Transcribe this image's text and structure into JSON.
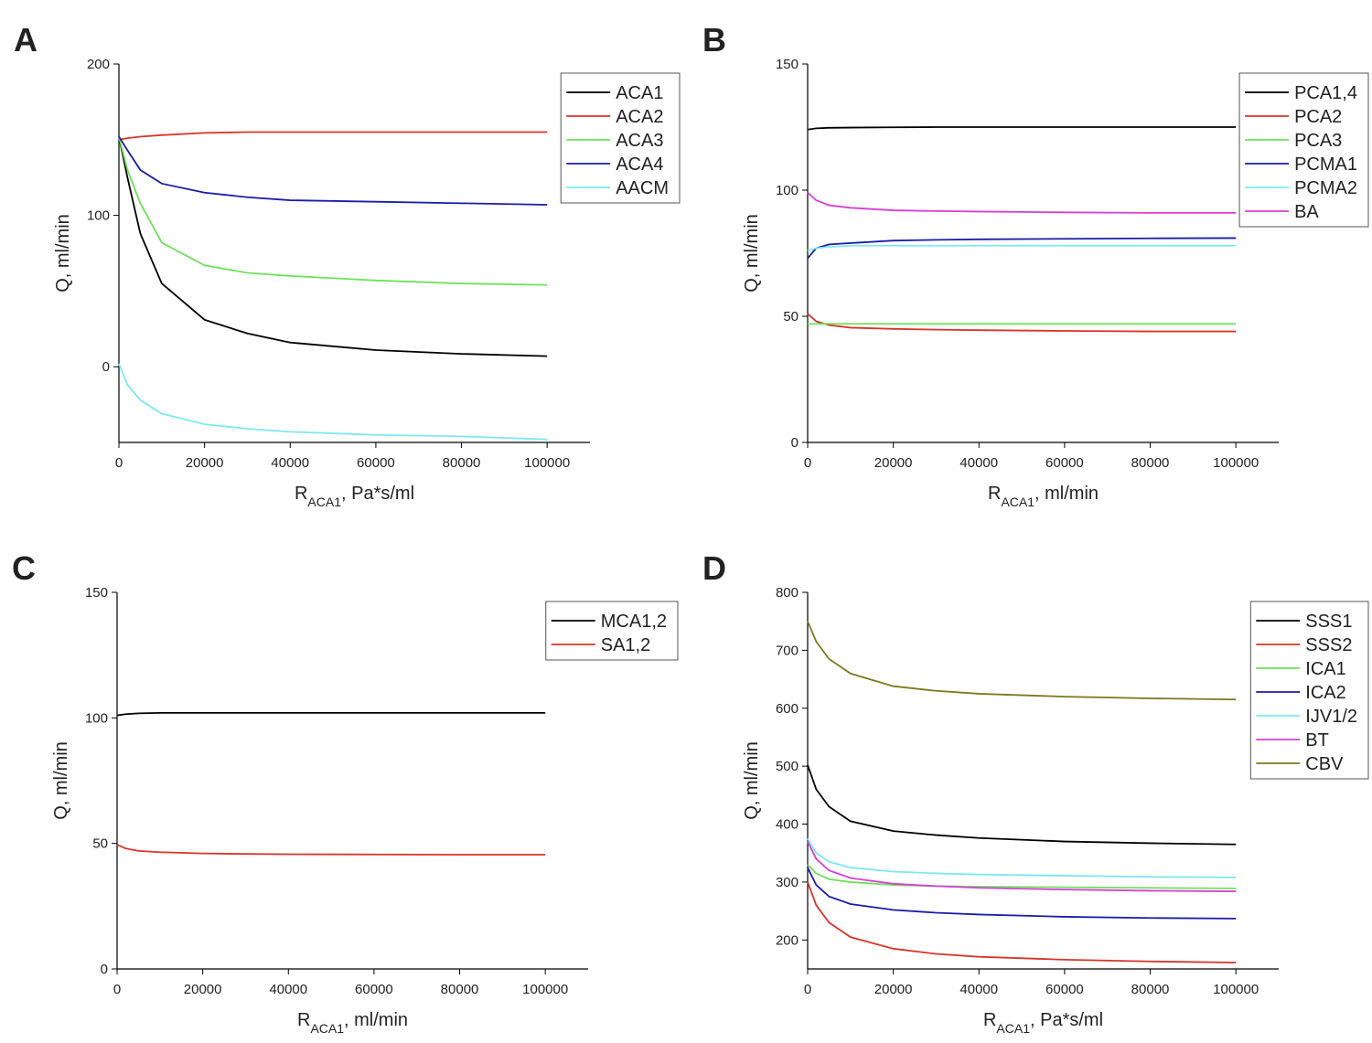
{
  "chart_data": [
    {
      "type": "line",
      "panel": "A",
      "xlabel": [
        "R",
        "ACA1",
        ", Pa*s/ml"
      ],
      "ylabel": "Q, ml/min",
      "x": [
        0,
        2000,
        5000,
        10000,
        20000,
        30000,
        40000,
        60000,
        80000,
        100000
      ],
      "xlim": [
        0,
        110000
      ],
      "xticks": [
        0,
        20000,
        40000,
        60000,
        80000,
        100000
      ],
      "ylim": [
        -50,
        200
      ],
      "yticks": [
        0,
        100,
        200
      ],
      "legend": "upper right",
      "series": [
        {
          "name": "ACA1",
          "color": "#000000",
          "values": [
            152,
            125,
            88,
            55,
            31,
            22,
            16,
            11,
            8.5,
            7
          ]
        },
        {
          "name": "ACA2",
          "color": "#d8352a",
          "values": [
            150,
            151,
            152,
            153,
            154.5,
            155,
            155,
            155,
            155,
            155
          ]
        },
        {
          "name": "ACA3",
          "color": "#6ee05a",
          "values": [
            152,
            130,
            108,
            82,
            67,
            62,
            60,
            57,
            55,
            54
          ]
        },
        {
          "name": "ACA4",
          "color": "#1c1ca8",
          "values": [
            152,
            143,
            130,
            121,
            115,
            112,
            110,
            109,
            108,
            107
          ]
        },
        {
          "name": "AACM",
          "color": "#7ee8f0",
          "values": [
            2,
            -12,
            -22,
            -31,
            -38,
            -41,
            -43,
            -45,
            -46,
            -48
          ]
        }
      ]
    },
    {
      "type": "line",
      "panel": "B",
      "xlabel": [
        "R",
        "ACA1",
        ", ml/min"
      ],
      "ylabel": "Q, ml/min",
      "x": [
        0,
        2000,
        5000,
        10000,
        20000,
        30000,
        40000,
        60000,
        80000,
        100000
      ],
      "xlim": [
        0,
        110000
      ],
      "xticks": [
        0,
        20000,
        40000,
        60000,
        80000,
        100000
      ],
      "ylim": [
        0,
        150
      ],
      "yticks": [
        0,
        50,
        100,
        150
      ],
      "legend": "upper right",
      "series": [
        {
          "name": "PCA1,4",
          "color": "#000000",
          "values": [
            124,
            124.5,
            124.7,
            124.8,
            124.9,
            125,
            125,
            125,
            125,
            125
          ]
        },
        {
          "name": "PCA2",
          "color": "#d8352a",
          "values": [
            51,
            48,
            46.5,
            45.5,
            45,
            44.7,
            44.5,
            44.2,
            44,
            44
          ]
        },
        {
          "name": "PCA3",
          "color": "#6ee05a",
          "values": [
            47,
            47,
            47,
            47,
            47,
            47,
            47,
            47,
            47,
            47
          ]
        },
        {
          "name": "PCMA1",
          "color": "#1c1ca8",
          "values": [
            73,
            77,
            78.5,
            79,
            80,
            80.3,
            80.5,
            80.7,
            80.9,
            81
          ]
        },
        {
          "name": "PCMA2",
          "color": "#7ee8f0",
          "values": [
            76,
            77,
            77.5,
            78,
            78,
            78,
            78,
            78,
            78,
            78
          ]
        },
        {
          "name": "BA",
          "color": "#d43fd4",
          "values": [
            99,
            96,
            94,
            93,
            92,
            91.7,
            91.5,
            91.2,
            91,
            91
          ]
        }
      ]
    },
    {
      "type": "line",
      "panel": "C",
      "xlabel": [
        "R",
        "ACA1",
        ", ml/min"
      ],
      "ylabel": "Q, ml/min",
      "x": [
        0,
        2000,
        5000,
        10000,
        20000,
        30000,
        40000,
        60000,
        80000,
        100000
      ],
      "xlim": [
        0,
        110000
      ],
      "xticks": [
        0,
        20000,
        40000,
        60000,
        80000,
        100000
      ],
      "ylim": [
        0,
        150
      ],
      "yticks": [
        0,
        50,
        100,
        150
      ],
      "legend": "upper right",
      "series": [
        {
          "name": "MCA1,2",
          "color": "#000000",
          "values": [
            101,
            101.5,
            101.8,
            102,
            102,
            102,
            102,
            102,
            102,
            102
          ]
        },
        {
          "name": "SA1,2",
          "color": "#d8352a",
          "values": [
            49.5,
            48,
            47,
            46.5,
            46,
            45.8,
            45.7,
            45.6,
            45.5,
            45.5
          ]
        }
      ]
    },
    {
      "type": "line",
      "panel": "D",
      "xlabel": [
        "R",
        "ACA1",
        ", Pa*s/ml"
      ],
      "ylabel": "Q, ml/min",
      "x": [
        0,
        2000,
        5000,
        10000,
        20000,
        30000,
        40000,
        60000,
        80000,
        100000
      ],
      "xlim": [
        0,
        110000
      ],
      "xticks": [
        0,
        20000,
        40000,
        60000,
        80000,
        100000
      ],
      "ylim": [
        150,
        800
      ],
      "yticks": [
        200,
        300,
        400,
        500,
        600,
        700,
        800
      ],
      "legend": "upper right",
      "series": [
        {
          "name": "SSS1",
          "color": "#000000",
          "values": [
            502,
            460,
            430,
            405,
            388,
            381,
            376,
            370,
            367,
            365
          ]
        },
        {
          "name": "SSS2",
          "color": "#d8352a",
          "values": [
            300,
            260,
            230,
            205,
            185,
            176,
            171,
            166,
            163,
            161
          ]
        },
        {
          "name": "ICA1",
          "color": "#6ee05a",
          "values": [
            330,
            315,
            305,
            300,
            295,
            293,
            292,
            291,
            290,
            289
          ]
        },
        {
          "name": "ICA2",
          "color": "#1c1ca8",
          "values": [
            325,
            295,
            275,
            262,
            252,
            247,
            244,
            240,
            238,
            237
          ]
        },
        {
          "name": "IJV1/2",
          "color": "#7ee8f0",
          "values": [
            375,
            350,
            335,
            325,
            318,
            315,
            313,
            311,
            309,
            308
          ]
        },
        {
          "name": "BT",
          "color": "#d43fd4",
          "values": [
            370,
            340,
            320,
            307,
            297,
            293,
            290,
            287,
            285,
            284
          ]
        },
        {
          "name": "CBV",
          "color": "#7a7a20",
          "values": [
            750,
            715,
            685,
            660,
            638,
            630,
            625,
            620,
            617,
            615
          ]
        }
      ]
    }
  ]
}
